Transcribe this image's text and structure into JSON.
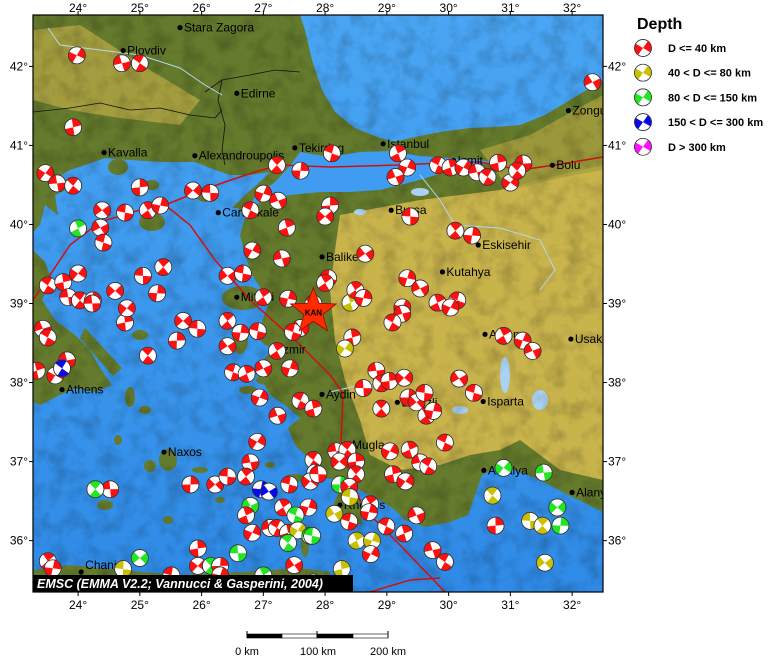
{
  "map": {
    "lon_range": [
      23.27,
      32.5
    ],
    "lat_range": [
      35.35,
      42.65
    ],
    "sea_color": "#3d9bf0",
    "lowland_color": "#647a2c",
    "highland_color": "#c9b44c",
    "fault_color": "#d01010"
  },
  "ticks": {
    "lon": [
      24,
      25,
      26,
      27,
      28,
      29,
      30,
      31,
      32
    ],
    "lon_labels": [
      "24°",
      "25°",
      "26°",
      "27°",
      "28°",
      "29°",
      "30°",
      "31°",
      "32°"
    ],
    "lat": [
      36,
      37,
      38,
      39,
      40,
      41,
      42
    ],
    "lat_labels": [
      "36°",
      "37°",
      "38°",
      "39°",
      "40°",
      "41°",
      "42°"
    ]
  },
  "legend": {
    "title": "Depth",
    "items": [
      {
        "label": "D <= 40 km",
        "color": "#ff1010"
      },
      {
        "label": "40 < D <= 80 km",
        "color": "#c8c000"
      },
      {
        "label": "80 < D <= 150 km",
        "color": "#22e622"
      },
      {
        "label": "150 < D <= 300 km",
        "color": "#0a0ae6"
      },
      {
        "label": "D > 300 km",
        "color": "#ff10ff"
      }
    ]
  },
  "credit": "EMSC (EMMA V2.2; Vannucci & Gasperini, 2004)",
  "scale_bar": {
    "labels": [
      "0 km",
      "100 km",
      "200 km"
    ]
  },
  "marker": {
    "label": "KAN",
    "lon": 27.81,
    "lat": 38.9,
    "color": "#ff2a00"
  },
  "cities": [
    {
      "name": "Stara Zagora",
      "lon": 25.65,
      "lat": 42.49
    },
    {
      "name": "Plovdiv",
      "lon": 24.73,
      "lat": 42.2
    },
    {
      "name": "Edirne",
      "lon": 26.57,
      "lat": 41.66
    },
    {
      "name": "Kavalla",
      "lon": 24.42,
      "lat": 40.91
    },
    {
      "name": "Alexandroupolis",
      "lon": 25.89,
      "lat": 40.87
    },
    {
      "name": "Tekirdag",
      "lon": 27.51,
      "lat": 40.97
    },
    {
      "name": "Istanbul",
      "lon": 28.94,
      "lat": 41.02
    },
    {
      "name": "Zonguldak",
      "lon": 31.94,
      "lat": 41.44
    },
    {
      "name": "Bolu",
      "lon": 31.68,
      "lat": 40.75
    },
    {
      "name": "Izmit",
      "lon": 30.08,
      "lat": 40.81
    },
    {
      "name": "Bursa",
      "lon": 29.07,
      "lat": 40.18
    },
    {
      "name": "Canakkale",
      "lon": 26.27,
      "lat": 40.15
    },
    {
      "name": "Eskisehir",
      "lon": 30.48,
      "lat": 39.74
    },
    {
      "name": "Balikesir",
      "lon": 27.95,
      "lat": 39.59
    },
    {
      "name": "Kutahya",
      "lon": 29.9,
      "lat": 39.4
    },
    {
      "name": "Mitilini",
      "lon": 26.57,
      "lat": 39.08
    },
    {
      "name": "Izmir",
      "lon": 27.2,
      "lat": 38.42
    },
    {
      "name": "Afyon",
      "lon": 30.59,
      "lat": 38.61
    },
    {
      "name": "Usak",
      "lon": 31.98,
      "lat": 38.55
    },
    {
      "name": "Athens",
      "lon": 23.74,
      "lat": 37.91
    },
    {
      "name": "Aydin",
      "lon": 27.95,
      "lat": 37.85
    },
    {
      "name": "Denizli",
      "lon": 29.17,
      "lat": 37.75
    },
    {
      "name": "Isparta",
      "lon": 30.56,
      "lat": 37.76
    },
    {
      "name": "Naxos",
      "lon": 25.39,
      "lat": 37.12
    },
    {
      "name": "Mugla",
      "lon": 28.37,
      "lat": 37.21
    },
    {
      "name": "Antalya",
      "lon": 30.57,
      "lat": 36.89
    },
    {
      "name": "Rhodos",
      "lon": 28.24,
      "lat": 36.45
    },
    {
      "name": "Alanya",
      "lon": 32.0,
      "lat": 36.61
    },
    {
      "name": "Chania",
      "lon": 24.05,
      "lat": 35.51
    }
  ],
  "events": [
    [
      23.98,
      42.14,
      0
    ],
    [
      24.71,
      42.04,
      0
    ],
    [
      25.0,
      42.04,
      0
    ],
    [
      23.92,
      41.23,
      0
    ],
    [
      23.47,
      40.65,
      0
    ],
    [
      23.66,
      40.52,
      0
    ],
    [
      23.92,
      40.49,
      0
    ],
    [
      25.0,
      40.47,
      0
    ],
    [
      25.86,
      40.43,
      0
    ],
    [
      26.14,
      40.4,
      0
    ],
    [
      27.22,
      40.75,
      0
    ],
    [
      27.6,
      40.68,
      0
    ],
    [
      24.39,
      40.18,
      0
    ],
    [
      24.76,
      40.15,
      0
    ],
    [
      25.13,
      40.18,
      0
    ],
    [
      25.33,
      40.24,
      0
    ],
    [
      24.36,
      39.96,
      0
    ],
    [
      24.41,
      39.77,
      0
    ],
    [
      24.0,
      39.95,
      2
    ],
    [
      27.0,
      40.39,
      0
    ],
    [
      27.24,
      40.3,
      0
    ],
    [
      26.79,
      40.18,
      0
    ],
    [
      27.38,
      39.96,
      0
    ],
    [
      26.82,
      39.67,
      0
    ],
    [
      27.3,
      39.57,
      0
    ],
    [
      23.51,
      39.23,
      0
    ],
    [
      23.76,
      39.27,
      0
    ],
    [
      24.0,
      39.38,
      0
    ],
    [
      23.84,
      39.08,
      0
    ],
    [
      24.03,
      39.04,
      0
    ],
    [
      24.24,
      39.04,
      0
    ],
    [
      24.6,
      39.16,
      0
    ],
    [
      25.05,
      39.35,
      0
    ],
    [
      25.38,
      39.46,
      0
    ],
    [
      25.28,
      39.13,
      0
    ],
    [
      26.42,
      39.35,
      0
    ],
    [
      26.67,
      39.38,
      0
    ],
    [
      27.0,
      39.08,
      0
    ],
    [
      27.4,
      39.06,
      0
    ],
    [
      32.33,
      41.8,
      0
    ],
    [
      28.11,
      40.9,
      0
    ],
    [
      29.18,
      40.9,
      0
    ],
    [
      29.33,
      40.72,
      0
    ],
    [
      29.14,
      40.6,
      0
    ],
    [
      29.83,
      40.75,
      0
    ],
    [
      30.03,
      40.72,
      0
    ],
    [
      30.24,
      40.72,
      0
    ],
    [
      30.46,
      40.66,
      0
    ],
    [
      30.63,
      40.6,
      0
    ],
    [
      30.8,
      40.78,
      0
    ],
    [
      31.0,
      40.53,
      0
    ],
    [
      31.21,
      40.77,
      0
    ],
    [
      31.11,
      40.68,
      0
    ],
    [
      28.08,
      40.24,
      0
    ],
    [
      28.0,
      40.1,
      0
    ],
    [
      29.38,
      40.1,
      0
    ],
    [
      30.11,
      39.92,
      0
    ],
    [
      30.38,
      39.86,
      0
    ],
    [
      28.65,
      39.63,
      0
    ],
    [
      28.05,
      39.32,
      0
    ],
    [
      28.0,
      39.26,
      0
    ],
    [
      29.33,
      39.32,
      0
    ],
    [
      29.54,
      39.19,
      0
    ],
    [
      30.14,
      39.04,
      0
    ],
    [
      29.82,
      39.01,
      0
    ],
    [
      29.25,
      38.95,
      0
    ],
    [
      23.43,
      38.68,
      0
    ],
    [
      23.51,
      38.57,
      0
    ],
    [
      23.33,
      38.15,
      0
    ],
    [
      23.63,
      38.09,
      0
    ],
    [
      23.82,
      38.28,
      0
    ],
    [
      23.74,
      38.18,
      3
    ],
    [
      24.76,
      38.76,
      0
    ],
    [
      24.79,
      38.94,
      0
    ],
    [
      24.23,
      39.0,
      0
    ],
    [
      25.13,
      38.34,
      0
    ],
    [
      25.6,
      38.53,
      0
    ],
    [
      25.7,
      38.78,
      0
    ],
    [
      25.93,
      38.68,
      0
    ],
    [
      26.42,
      38.78,
      0
    ],
    [
      26.63,
      38.63,
      0
    ],
    [
      26.42,
      38.46,
      0
    ],
    [
      26.91,
      38.65,
      0
    ],
    [
      27.22,
      38.4,
      0
    ],
    [
      27.43,
      38.18,
      0
    ],
    [
      27.0,
      38.18,
      0
    ],
    [
      26.51,
      38.13,
      0
    ],
    [
      26.73,
      38.11,
      0
    ],
    [
      26.94,
      37.81,
      0
    ],
    [
      27.23,
      37.58,
      0
    ],
    [
      27.6,
      37.77,
      0
    ],
    [
      27.81,
      37.67,
      0
    ],
    [
      26.9,
      37.25,
      0
    ],
    [
      26.79,
      36.99,
      0
    ],
    [
      27.81,
      37.02,
      0
    ],
    [
      27.84,
      36.86,
      0
    ],
    [
      27.76,
      36.75,
      0
    ],
    [
      24.52,
      36.65,
      0
    ],
    [
      24.28,
      36.65,
      2
    ],
    [
      25.82,
      36.71,
      0
    ],
    [
      26.22,
      36.71,
      0
    ],
    [
      26.42,
      36.81,
      0
    ],
    [
      26.72,
      36.81,
      0
    ],
    [
      26.96,
      36.65,
      3
    ],
    [
      27.09,
      36.62,
      3
    ],
    [
      27.42,
      36.71,
      0
    ],
    [
      27.32,
      36.42,
      0
    ],
    [
      27.73,
      36.42,
      0
    ],
    [
      26.79,
      36.44,
      2
    ],
    [
      27.52,
      36.32,
      2
    ],
    [
      26.72,
      36.32,
      0
    ],
    [
      26.82,
      36.1,
      0
    ],
    [
      27.11,
      36.16,
      0
    ],
    [
      27.22,
      36.16,
      0
    ],
    [
      27.4,
      36.1,
      0
    ],
    [
      27.56,
      36.13,
      1
    ],
    [
      27.76,
      36.06,
      2
    ],
    [
      27.4,
      35.97,
      2
    ],
    [
      25.94,
      35.9,
      0
    ],
    [
      25.94,
      35.68,
      0
    ],
    [
      26.59,
      35.84,
      2
    ],
    [
      26.15,
      35.68,
      2
    ],
    [
      26.3,
      35.68,
      0
    ],
    [
      25.0,
      35.78,
      2
    ],
    [
      24.73,
      35.64,
      1
    ],
    [
      23.51,
      35.74,
      0
    ],
    [
      23.59,
      35.65,
      0
    ],
    [
      27.5,
      35.69,
      0
    ],
    [
      25.51,
      35.56,
      0
    ],
    [
      27.0,
      35.56,
      2
    ],
    [
      26.3,
      35.56,
      0
    ],
    [
      27.81,
      35.47,
      0
    ],
    [
      27.81,
      39.0,
      0
    ],
    [
      28.41,
      39.01,
      1
    ],
    [
      30.03,
      38.95,
      0
    ],
    [
      29.25,
      38.87,
      0
    ],
    [
      29.09,
      38.76,
      0
    ],
    [
      28.44,
      38.57,
      0
    ],
    [
      28.32,
      38.43,
      1
    ],
    [
      28.83,
      38.15,
      0
    ],
    [
      28.91,
      37.99,
      0
    ],
    [
      29.04,
      38.02,
      0
    ],
    [
      29.28,
      38.06,
      0
    ],
    [
      28.62,
      37.93,
      0
    ],
    [
      28.91,
      37.67,
      0
    ],
    [
      29.35,
      37.81,
      0
    ],
    [
      29.48,
      37.75,
      0
    ],
    [
      29.61,
      37.87,
      0
    ],
    [
      29.64,
      37.58,
      0
    ],
    [
      29.75,
      37.64,
      0
    ],
    [
      30.17,
      38.05,
      0
    ],
    [
      30.41,
      37.87,
      0
    ],
    [
      30.89,
      38.59,
      0
    ],
    [
      31.2,
      38.53,
      0
    ],
    [
      31.36,
      38.4,
      0
    ],
    [
      29.94,
      37.24,
      0
    ],
    [
      29.37,
      37.15,
      0
    ],
    [
      29.05,
      37.13,
      0
    ],
    [
      29.54,
      36.99,
      0
    ],
    [
      29.67,
      36.94,
      0
    ],
    [
      29.1,
      36.84,
      0
    ],
    [
      29.3,
      36.75,
      0
    ],
    [
      28.18,
      37.13,
      0
    ],
    [
      28.36,
      37.15,
      0
    ],
    [
      28.5,
      37.0,
      0
    ],
    [
      28.23,
      37.0,
      0
    ],
    [
      27.89,
      36.84,
      0
    ],
    [
      28.5,
      36.84,
      0
    ],
    [
      28.24,
      36.71,
      2
    ],
    [
      28.39,
      36.68,
      0
    ],
    [
      28.4,
      36.55,
      1
    ],
    [
      28.73,
      36.46,
      0
    ],
    [
      28.71,
      36.36,
      0
    ],
    [
      28.15,
      36.34,
      1
    ],
    [
      28.39,
      36.24,
      0
    ],
    [
      28.51,
      36.0,
      1
    ],
    [
      28.76,
      36.0,
      1
    ],
    [
      29.48,
      36.32,
      0
    ],
    [
      28.99,
      36.18,
      0
    ],
    [
      29.28,
      36.09,
      0
    ],
    [
      28.74,
      35.83,
      0
    ],
    [
      29.74,
      35.88,
      0
    ],
    [
      29.94,
      35.73,
      0
    ],
    [
      28.27,
      35.64,
      1
    ],
    [
      30.89,
      36.92,
      2
    ],
    [
      31.54,
      36.86,
      2
    ],
    [
      30.71,
      36.57,
      1
    ],
    [
      30.76,
      36.19,
      0
    ],
    [
      31.76,
      36.42,
      2
    ],
    [
      31.32,
      36.25,
      1
    ],
    [
      31.52,
      36.19,
      1
    ],
    [
      31.81,
      36.19,
      2
    ],
    [
      31.56,
      35.72,
      1
    ],
    [
      27.79,
      36.06,
      2
    ],
    [
      28.49,
      39.17,
      0
    ],
    [
      28.62,
      39.07,
      0
    ],
    [
      27.6,
      38.69,
      0
    ],
    [
      27.48,
      38.64,
      0
    ]
  ]
}
